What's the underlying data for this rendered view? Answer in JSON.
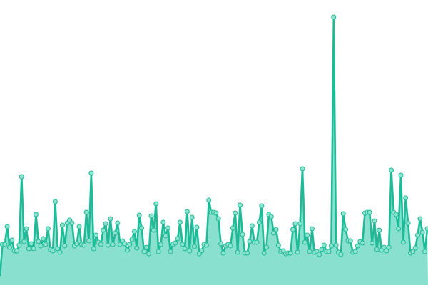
{
  "chart_data": {
    "type": "area",
    "title": "",
    "xlabel": "",
    "ylabel": "",
    "ylim": [
      0,
      400
    ],
    "grid": false,
    "legend": "none",
    "markers": true,
    "colors": {
      "line": "#1dbb97",
      "fill": "#8ae0cf",
      "marker_fill": "#8ee2d0",
      "marker_stroke": "#1dbb97",
      "background": "#ffffff"
    },
    "series": [
      {
        "values": [
          12,
          57,
          57,
          82,
          53,
          63,
          48,
          48,
          56,
          152,
          61,
          79,
          51,
          58,
          51,
          99,
          61,
          55,
          65,
          57,
          79,
          50,
          48,
          117,
          51,
          46,
          84,
          55,
          87,
          91,
          87,
          55,
          58,
          82,
          57,
          56,
          102,
          62,
          157,
          51,
          70,
          60,
          57,
          77,
          86,
          56,
          93,
          57,
          73,
          87,
          57,
          62,
          58,
          49,
          57,
          64,
          75,
          52,
          98,
          80,
          47,
          53,
          44,
          97,
          77,
          114,
          47,
          57,
          88,
          69,
          80,
          47,
          57,
          59,
          65,
          88,
          57,
          51,
          103,
          48,
          95,
          54,
          81,
          44,
          48,
          57,
          56,
          119,
          102,
          102,
          101,
          93,
          58,
          45,
          55,
          57,
          55,
          80,
          101,
          46,
          112,
          71,
          45,
          45,
          61,
          83,
          60,
          60,
          88,
          111,
          45,
          53,
          99,
          96,
          73,
          78,
          56,
          47,
          48,
          44,
          45,
          45,
          78,
          86,
          46,
          86,
          163,
          60,
          70,
          47,
          79,
          46,
          47,
          43,
          50,
          56,
          47,
          47,
          55,
          376,
          56,
          46,
          43,
          100,
          78,
          62,
          62,
          46,
          47,
          55,
          61,
          59,
          101,
          102,
          102,
          59,
          90,
          50,
          77,
          49,
          53,
          48,
          53,
          161,
          102,
          99,
          79,
          154,
          60,
          122,
          87,
          45,
          47,
          52,
          70,
          93,
          74,
          47,
          79
        ]
      }
    ]
  }
}
